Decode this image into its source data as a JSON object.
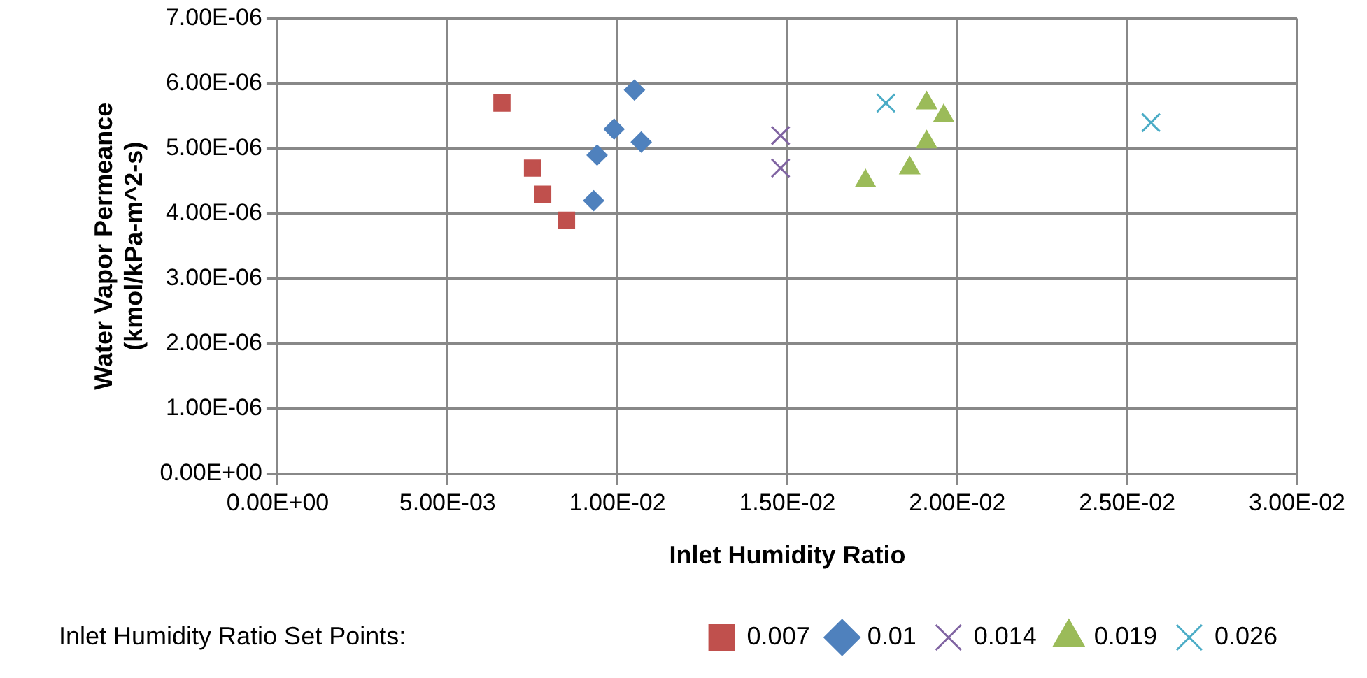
{
  "chart_data": {
    "type": "scatter",
    "xlabel": "Inlet Humidity Ratio",
    "ylabel": "Water Vapor Permeance\n(kmol/kPa-m^2-s)",
    "legend_title": "Inlet Humidity Ratio Set Points:",
    "legend": "bottom",
    "grid": true,
    "xlim": [
      0,
      0.03
    ],
    "xticks": [
      {
        "value": 0,
        "label": "0.00E+00"
      },
      {
        "value": 0.005,
        "label": "5.00E-03"
      },
      {
        "value": 0.01,
        "label": "1.00E-02"
      },
      {
        "value": 0.015,
        "label": "1.50E-02"
      },
      {
        "value": 0.02,
        "label": "2.00E-02"
      },
      {
        "value": 0.025,
        "label": "2.50E-02"
      },
      {
        "value": 0.03,
        "label": "3.00E-02"
      }
    ],
    "ylim": [
      0,
      7e-06
    ],
    "yticks": [
      {
        "value": 0,
        "label": "0.00E+00"
      },
      {
        "value": 1e-06,
        "label": "1.00E-06"
      },
      {
        "value": 2e-06,
        "label": "2.00E-06"
      },
      {
        "value": 3e-06,
        "label": "3.00E-06"
      },
      {
        "value": 4e-06,
        "label": "4.00E-06"
      },
      {
        "value": 5e-06,
        "label": "5.00E-06"
      },
      {
        "value": 6e-06,
        "label": "6.00E-06"
      },
      {
        "value": 7e-06,
        "label": "7.00E-06"
      }
    ],
    "series": [
      {
        "name": "0.007",
        "color": "#c0504d",
        "marker": "square",
        "x": [
          0.0066,
          0.0075,
          0.0078,
          0.0085
        ],
        "values": [
          5.7e-06,
          4.7e-06,
          4.3e-06,
          3.9e-06
        ]
      },
      {
        "name": "0.01",
        "color": "#4f81bd",
        "marker": "diamond",
        "x": [
          0.0105,
          0.0099,
          0.0107,
          0.0094,
          0.0093
        ],
        "values": [
          5.9e-06,
          5.3e-06,
          5.1e-06,
          4.9e-06,
          4.2e-06
        ]
      },
      {
        "name": "0.014",
        "color": "#8064a2",
        "marker": "cross",
        "x": [
          0.0148,
          0.0148
        ],
        "values": [
          5.2e-06,
          4.7e-06
        ]
      },
      {
        "name": "0.019",
        "color": "#9bbb59",
        "marker": "triangle",
        "x": [
          0.0173,
          0.0186,
          0.0191,
          0.0191,
          0.0196
        ],
        "values": [
          4.5e-06,
          4.7e-06,
          5.1e-06,
          5.7e-06,
          5.5e-06
        ]
      },
      {
        "name": "0.026",
        "color": "#4bacc6",
        "marker": "cross",
        "x": [
          0.0179,
          0.0257
        ],
        "values": [
          5.7e-06,
          5.4e-06
        ]
      }
    ]
  }
}
